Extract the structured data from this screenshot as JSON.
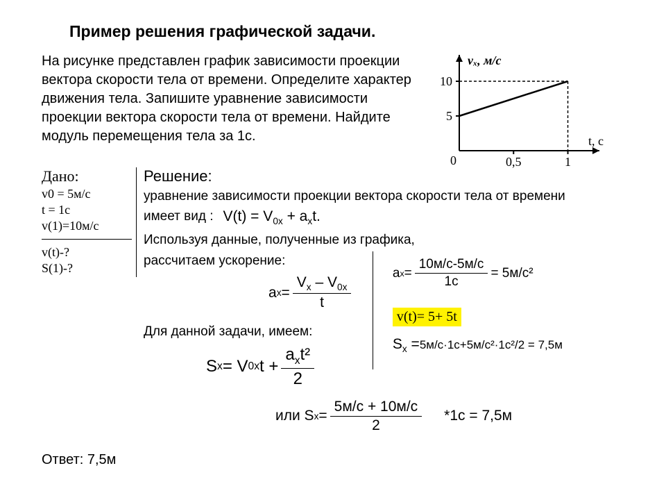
{
  "title": "Пример решения графической задачи.",
  "problem": "На рисунке представлен график зависимости проекции вектора скорости тела от времени. Определите характер движения тела. Запишите уравнение зависимости проекции вектора скорости тела от времени. Найдите модуль перемещения тела за 1с.",
  "given": {
    "heading": "Дано:",
    "lines": [
      "v0 = 5м/с",
      "t = 1с",
      "v(1)=10м/с"
    ],
    "find": [
      "v(t)-?",
      "S(1)-?"
    ]
  },
  "solution": {
    "heading": "Решение:",
    "eq_intro": "уравнение зависимости проекции вектора скорости тела от времени",
    "eq_form_label": "имеет вид :",
    "velocity_eq": {
      "lhs": "V(t) =",
      "rhs_a": "V",
      "rhs_a_sub": "0x",
      "rhs_plus": " + a",
      "rhs_b_sub": "x",
      "rhs_tail": "t."
    },
    "graph_use_1": "Используя данные, полученные из графика,",
    "graph_use_2": "рассчитаем ускорение:",
    "accel_formula": {
      "lhs": "a",
      "lhs_sub": "x",
      "eq": " = ",
      "num_a": "V",
      "num_a_sub": "x",
      "num_dash": " – V",
      "num_b_sub": "0x",
      "den": "t"
    },
    "accel_calc": {
      "lhs": "a",
      "lhs_sub": "x",
      "eq": "  = ",
      "num": "10м/с-5м/с",
      "den": "1с",
      "result": " = 5м/с²"
    },
    "for_task": "Для данной задачи, имеем:",
    "sx_formula": {
      "lhs": "S",
      "lhs_sub": "x",
      "eq": "  = V",
      "v_sub": "0x",
      "mid": "t + ",
      "num_a": "a",
      "num_a_sub": "x",
      "num_t": "t²",
      "den": "2"
    },
    "vt_result": "v(t)= 5+ 5t",
    "sx_calc": {
      "lhs": "S",
      "lhs_sub": "x",
      "eq": "  = ",
      "calc": "5м/с·1с+5м/с²·1с²/2 = 7,5м"
    },
    "alt": {
      "or": "или   S",
      "sub": "x",
      "eq": " = ",
      "num": "5м/с + 10м/с",
      "den": "2",
      "tail": "*1с = 7,5м"
    }
  },
  "answer": "Ответ: 7,5м",
  "chart": {
    "y_label": "vₓ, м/с",
    "x_label": "t, с",
    "y_ticks": [
      5,
      10
    ],
    "x_ticks": [
      "0",
      "0,5",
      "1"
    ],
    "xlim": [
      0,
      1.15
    ],
    "ylim": [
      0,
      12
    ],
    "line": {
      "x0": 0,
      "y0": 5,
      "x1": 1,
      "y1": 10
    },
    "axis_color": "#000000",
    "line_width": 2.5,
    "background": "#ffffff"
  }
}
